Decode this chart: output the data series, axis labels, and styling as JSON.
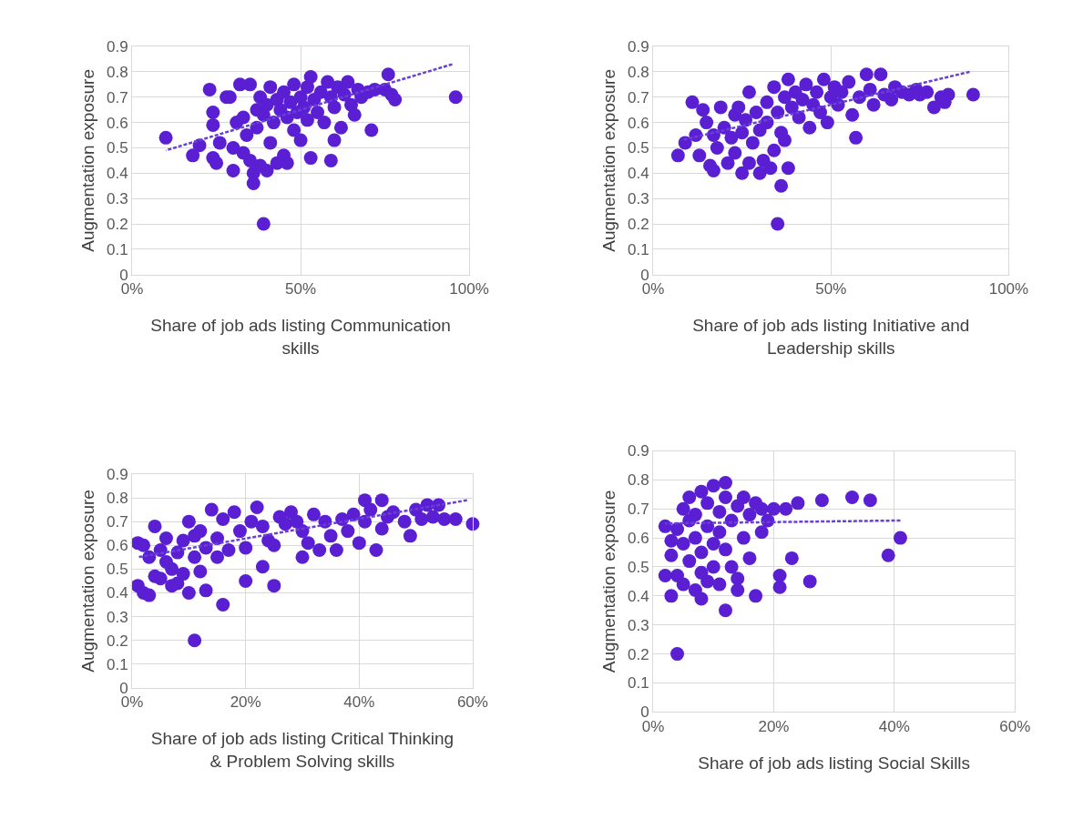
{
  "chart_data": [
    {
      "type": "scatter",
      "xlabel": "Share of job ads listing Communication skills",
      "ylabel": "Augmentation exposure",
      "marker": "circle",
      "grid": true,
      "xlim": [
        0,
        1
      ],
      "xticks": [
        {
          "value": 0,
          "label": "0%"
        },
        {
          "value": 0.5,
          "label": "50%"
        },
        {
          "value": 1,
          "label": "100%"
        }
      ],
      "ylim": [
        0,
        0.9
      ],
      "yticks": [
        0,
        0.1,
        0.2,
        0.3,
        0.4,
        0.5,
        0.6,
        0.7,
        0.8,
        0.9
      ],
      "series": [
        {
          "color": "#5a1fd2",
          "x": [
            0.1,
            0.18,
            0.2,
            0.23,
            0.24,
            0.24,
            0.24,
            0.25,
            0.26,
            0.28,
            0.29,
            0.3,
            0.3,
            0.31,
            0.32,
            0.33,
            0.33,
            0.34,
            0.35,
            0.35,
            0.36,
            0.36,
            0.37,
            0.37,
            0.38,
            0.38,
            0.39,
            0.39,
            0.4,
            0.4,
            0.41,
            0.41,
            0.42,
            0.43,
            0.43,
            0.44,
            0.45,
            0.45,
            0.46,
            0.46,
            0.47,
            0.48,
            0.48,
            0.49,
            0.5,
            0.5,
            0.51,
            0.52,
            0.52,
            0.53,
            0.53,
            0.54,
            0.55,
            0.56,
            0.57,
            0.58,
            0.59,
            0.59,
            0.6,
            0.6,
            0.61,
            0.62,
            0.63,
            0.64,
            0.65,
            0.66,
            0.67,
            0.68,
            0.7,
            0.71,
            0.72,
            0.75,
            0.76,
            0.77,
            0.78,
            0.96
          ],
          "values": [
            0.54,
            0.47,
            0.51,
            0.73,
            0.64,
            0.59,
            0.46,
            0.44,
            0.52,
            0.7,
            0.7,
            0.5,
            0.41,
            0.6,
            0.75,
            0.48,
            0.62,
            0.55,
            0.45,
            0.75,
            0.4,
            0.36,
            0.65,
            0.58,
            0.43,
            0.7,
            0.2,
            0.63,
            0.41,
            0.67,
            0.74,
            0.52,
            0.6,
            0.44,
            0.69,
            0.65,
            0.72,
            0.47,
            0.62,
            0.44,
            0.68,
            0.57,
            0.75,
            0.64,
            0.7,
            0.53,
            0.66,
            0.74,
            0.61,
            0.78,
            0.46,
            0.69,
            0.64,
            0.72,
            0.6,
            0.76,
            0.7,
            0.45,
            0.66,
            0.53,
            0.74,
            0.58,
            0.71,
            0.76,
            0.67,
            0.63,
            0.73,
            0.7,
            0.72,
            0.57,
            0.73,
            0.73,
            0.79,
            0.71,
            0.69,
            0.7
          ]
        },
        {
          "type": "line",
          "line_style": "dotted",
          "marker": "none",
          "color": "#6a3fd8",
          "x": [
            0.1,
            0.95
          ],
          "values": [
            0.49,
            0.83
          ]
        }
      ]
    },
    {
      "type": "scatter",
      "xlabel": "Share of job ads listing Initiative and Leadership skills",
      "ylabel": "Augmentation exposure",
      "marker": "circle",
      "grid": true,
      "xlim": [
        0,
        1
      ],
      "xticks": [
        {
          "value": 0,
          "label": "0%"
        },
        {
          "value": 0.5,
          "label": "50%"
        },
        {
          "value": 1,
          "label": "100%"
        }
      ],
      "ylim": [
        0,
        0.9
      ],
      "yticks": [
        0,
        0.1,
        0.2,
        0.3,
        0.4,
        0.5,
        0.6,
        0.7,
        0.8,
        0.9
      ],
      "series": [
        {
          "color": "#5a1fd2",
          "x": [
            0.07,
            0.09,
            0.11,
            0.12,
            0.13,
            0.14,
            0.15,
            0.16,
            0.17,
            0.17,
            0.18,
            0.19,
            0.2,
            0.21,
            0.22,
            0.23,
            0.23,
            0.24,
            0.25,
            0.25,
            0.26,
            0.27,
            0.27,
            0.28,
            0.29,
            0.3,
            0.3,
            0.31,
            0.32,
            0.32,
            0.33,
            0.34,
            0.34,
            0.35,
            0.35,
            0.36,
            0.36,
            0.37,
            0.37,
            0.38,
            0.38,
            0.39,
            0.4,
            0.41,
            0.42,
            0.43,
            0.44,
            0.45,
            0.46,
            0.47,
            0.48,
            0.49,
            0.5,
            0.51,
            0.52,
            0.53,
            0.55,
            0.56,
            0.57,
            0.58,
            0.6,
            0.61,
            0.62,
            0.64,
            0.65,
            0.67,
            0.68,
            0.7,
            0.72,
            0.74,
            0.75,
            0.77,
            0.79,
            0.81,
            0.82,
            0.83,
            0.9
          ],
          "values": [
            0.47,
            0.52,
            0.68,
            0.55,
            0.47,
            0.65,
            0.6,
            0.43,
            0.55,
            0.41,
            0.5,
            0.66,
            0.58,
            0.44,
            0.54,
            0.63,
            0.48,
            0.66,
            0.4,
            0.56,
            0.61,
            0.72,
            0.44,
            0.52,
            0.64,
            0.4,
            0.57,
            0.45,
            0.68,
            0.6,
            0.42,
            0.49,
            0.74,
            0.2,
            0.64,
            0.35,
            0.56,
            0.7,
            0.53,
            0.42,
            0.77,
            0.66,
            0.72,
            0.62,
            0.69,
            0.75,
            0.58,
            0.67,
            0.72,
            0.64,
            0.77,
            0.6,
            0.7,
            0.74,
            0.67,
            0.72,
            0.76,
            0.63,
            0.54,
            0.7,
            0.79,
            0.73,
            0.67,
            0.79,
            0.71,
            0.69,
            0.74,
            0.72,
            0.71,
            0.73,
            0.71,
            0.72,
            0.66,
            0.7,
            0.68,
            0.71,
            0.71
          ]
        },
        {
          "type": "line",
          "line_style": "dotted",
          "marker": "none",
          "color": "#6a3fd8",
          "x": [
            0.08,
            0.89
          ],
          "values": [
            0.53,
            0.8
          ]
        }
      ]
    },
    {
      "type": "scatter",
      "xlabel": "Share of job ads listing Critical Thinking & Problem Solving skills",
      "ylabel": "Augmentation exposure",
      "marker": "circle",
      "grid": true,
      "xlim": [
        0,
        0.6
      ],
      "xticks": [
        {
          "value": 0,
          "label": "0%"
        },
        {
          "value": 0.2,
          "label": "20%"
        },
        {
          "value": 0.4,
          "label": "40%"
        },
        {
          "value": 0.6,
          "label": "60%"
        }
      ],
      "ylim": [
        0,
        0.9
      ],
      "yticks": [
        0,
        0.1,
        0.2,
        0.3,
        0.4,
        0.5,
        0.6,
        0.7,
        0.8,
        0.9
      ],
      "series": [
        {
          "color": "#5a1fd2",
          "x": [
            0.01,
            0.01,
            0.02,
            0.02,
            0.03,
            0.03,
            0.04,
            0.04,
            0.05,
            0.05,
            0.06,
            0.06,
            0.07,
            0.07,
            0.08,
            0.08,
            0.09,
            0.09,
            0.1,
            0.1,
            0.11,
            0.11,
            0.11,
            0.12,
            0.12,
            0.13,
            0.13,
            0.14,
            0.15,
            0.15,
            0.16,
            0.16,
            0.17,
            0.18,
            0.19,
            0.2,
            0.2,
            0.21,
            0.22,
            0.23,
            0.23,
            0.24,
            0.25,
            0.25,
            0.26,
            0.27,
            0.28,
            0.29,
            0.3,
            0.3,
            0.31,
            0.32,
            0.33,
            0.34,
            0.35,
            0.36,
            0.37,
            0.38,
            0.39,
            0.4,
            0.41,
            0.41,
            0.42,
            0.43,
            0.44,
            0.44,
            0.45,
            0.46,
            0.48,
            0.49,
            0.5,
            0.51,
            0.52,
            0.53,
            0.54,
            0.55,
            0.57,
            0.6
          ],
          "values": [
            0.61,
            0.43,
            0.4,
            0.6,
            0.55,
            0.39,
            0.47,
            0.68,
            0.46,
            0.58,
            0.53,
            0.63,
            0.5,
            0.43,
            0.57,
            0.44,
            0.62,
            0.48,
            0.4,
            0.7,
            0.2,
            0.55,
            0.64,
            0.49,
            0.66,
            0.59,
            0.41,
            0.75,
            0.63,
            0.55,
            0.35,
            0.71,
            0.58,
            0.74,
            0.66,
            0.45,
            0.59,
            0.7,
            0.76,
            0.51,
            0.68,
            0.62,
            0.43,
            0.6,
            0.72,
            0.69,
            0.74,
            0.7,
            0.55,
            0.66,
            0.61,
            0.73,
            0.58,
            0.7,
            0.64,
            0.58,
            0.71,
            0.66,
            0.73,
            0.61,
            0.79,
            0.7,
            0.75,
            0.58,
            0.79,
            0.67,
            0.72,
            0.74,
            0.7,
            0.64,
            0.75,
            0.71,
            0.77,
            0.72,
            0.77,
            0.71,
            0.71,
            0.69
          ]
        },
        {
          "type": "line",
          "line_style": "dotted",
          "marker": "none",
          "color": "#6a3fd8",
          "x": [
            0.01,
            0.59
          ],
          "values": [
            0.55,
            0.79
          ]
        }
      ]
    },
    {
      "type": "scatter",
      "xlabel": "Share of job ads listing Social Skills",
      "ylabel": "Augmentation exposure",
      "marker": "circle",
      "grid": true,
      "xlim": [
        0,
        0.6
      ],
      "xticks": [
        {
          "value": 0,
          "label": "0%"
        },
        {
          "value": 0.2,
          "label": "20%"
        },
        {
          "value": 0.4,
          "label": "40%"
        },
        {
          "value": 0.6,
          "label": "60%"
        }
      ],
      "ylim": [
        0,
        0.9
      ],
      "yticks": [
        0,
        0.1,
        0.2,
        0.3,
        0.4,
        0.5,
        0.6,
        0.7,
        0.8,
        0.9
      ],
      "series": [
        {
          "color": "#5a1fd2",
          "x": [
            0.02,
            0.02,
            0.03,
            0.03,
            0.03,
            0.04,
            0.04,
            0.04,
            0.05,
            0.05,
            0.05,
            0.06,
            0.06,
            0.06,
            0.07,
            0.07,
            0.07,
            0.08,
            0.08,
            0.08,
            0.08,
            0.09,
            0.09,
            0.09,
            0.1,
            0.1,
            0.1,
            0.11,
            0.11,
            0.11,
            0.12,
            0.12,
            0.12,
            0.12,
            0.13,
            0.13,
            0.14,
            0.14,
            0.14,
            0.15,
            0.15,
            0.16,
            0.16,
            0.17,
            0.17,
            0.18,
            0.18,
            0.19,
            0.2,
            0.21,
            0.21,
            0.22,
            0.23,
            0.24,
            0.26,
            0.28,
            0.33,
            0.36,
            0.39,
            0.41
          ],
          "values": [
            0.64,
            0.47,
            0.59,
            0.4,
            0.54,
            0.63,
            0.2,
            0.47,
            0.7,
            0.58,
            0.44,
            0.74,
            0.66,
            0.52,
            0.42,
            0.68,
            0.6,
            0.76,
            0.48,
            0.39,
            0.55,
            0.72,
            0.64,
            0.45,
            0.78,
            0.58,
            0.5,
            0.69,
            0.62,
            0.44,
            0.79,
            0.74,
            0.35,
            0.56,
            0.66,
            0.5,
            0.71,
            0.46,
            0.42,
            0.6,
            0.74,
            0.68,
            0.53,
            0.4,
            0.72,
            0.62,
            0.7,
            0.66,
            0.7,
            0.47,
            0.43,
            0.7,
            0.53,
            0.72,
            0.45,
            0.73,
            0.74,
            0.73,
            0.54,
            0.6
          ]
        },
        {
          "type": "line",
          "line_style": "dotted",
          "marker": "none",
          "color": "#6a3fd8",
          "x": [
            0.02,
            0.41
          ],
          "values": [
            0.65,
            0.66
          ]
        }
      ]
    }
  ]
}
